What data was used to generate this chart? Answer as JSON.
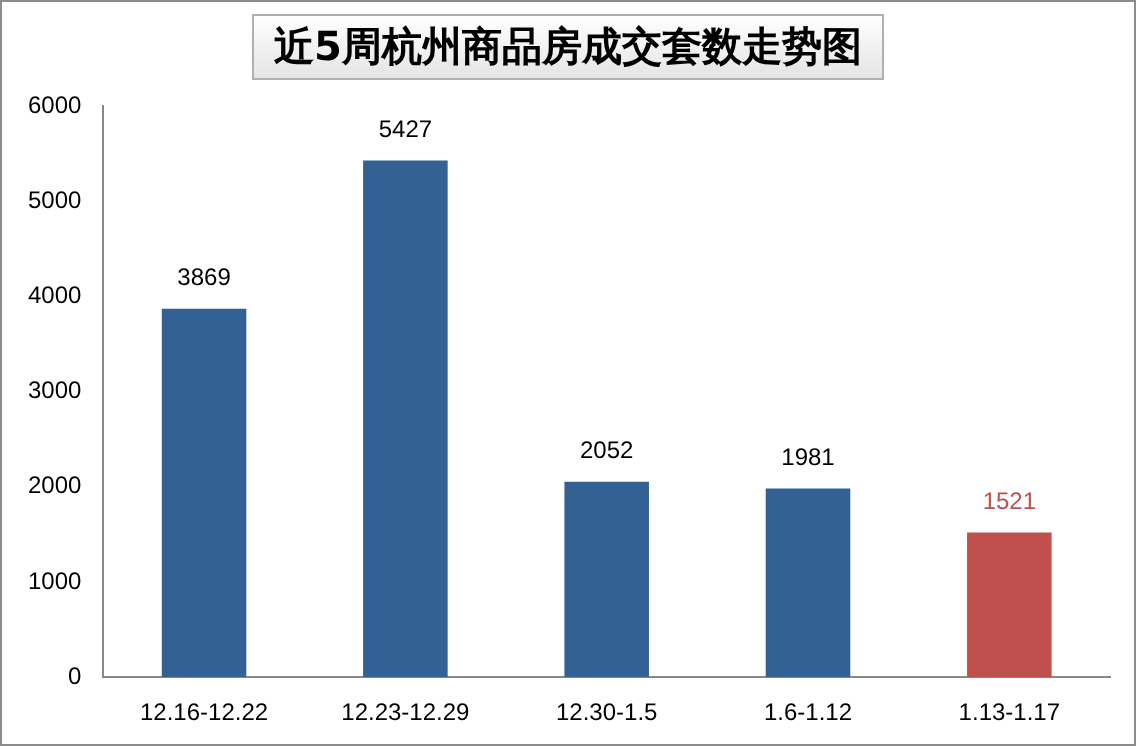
{
  "chart_data": {
    "type": "bar",
    "title": "近5周杭州商品房成交套数走势图",
    "categories": [
      "12.16-12.22",
      "12.23-12.29",
      "12.30-1.5",
      "1.6-1.12",
      "1.13-1.17"
    ],
    "values": [
      3869,
      5427,
      2052,
      1981,
      1521
    ],
    "colors": [
      "#336194",
      "#336194",
      "#336194",
      "#336194",
      "#c0504d"
    ],
    "ylim": [
      0,
      6000
    ],
    "yticks": [
      0,
      1000,
      2000,
      3000,
      4000,
      5000,
      6000
    ],
    "grid": false,
    "legend": false,
    "data_labels": true
  }
}
